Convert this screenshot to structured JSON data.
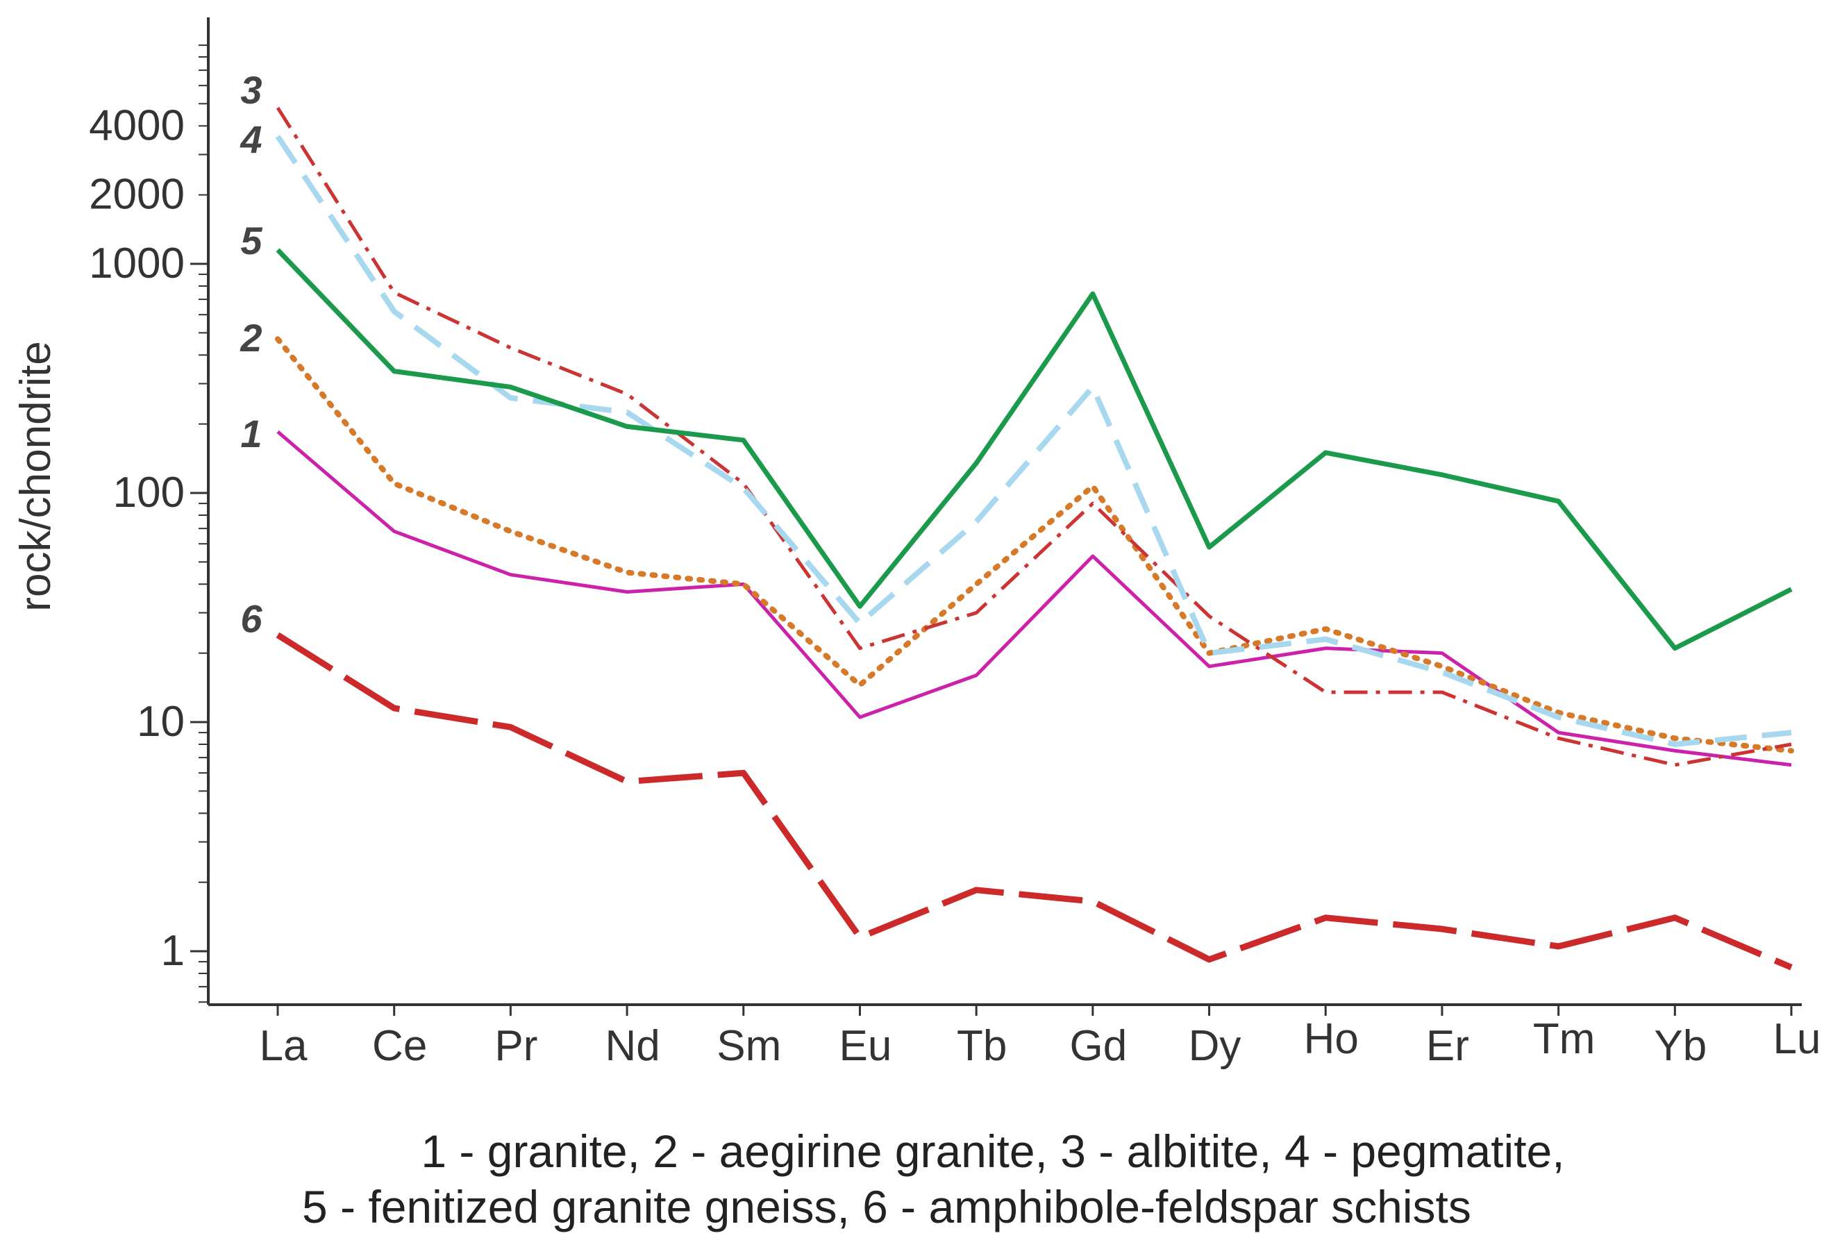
{
  "chart_data": {
    "type": "line",
    "title": "",
    "xlabel": "",
    "ylabel": "rock/chondrite",
    "yscale": "log",
    "ylim": [
      0.6,
      9000
    ],
    "y_ticks": [
      1,
      10,
      100,
      1000,
      2000,
      4000
    ],
    "y_tick_labels": [
      "1",
      "10",
      "100",
      "1000",
      "2000",
      "4000"
    ],
    "grid": false,
    "categories": [
      "La",
      "Ce",
      "Pr",
      "Nd",
      "Sm",
      "Eu",
      "Tb",
      "Gd",
      "Dy",
      "Ho",
      "Er",
      "Tm",
      "Yb",
      "Lu"
    ],
    "series": [
      {
        "name": "1",
        "label": "1",
        "color": "#cc22aa",
        "style": "solid",
        "values": [
          185,
          68,
          44,
          37,
          40,
          10.5,
          16,
          53,
          17.5,
          21,
          20,
          9,
          7.5,
          6.5
        ]
      },
      {
        "name": "2",
        "label": "2",
        "color": "#d67a2a",
        "style": "dotted",
        "values": [
          470,
          110,
          68,
          45,
          40,
          14.5,
          40,
          107,
          20,
          25.5,
          17.5,
          11,
          8.5,
          7.5
        ]
      },
      {
        "name": "3",
        "label": "3",
        "color": "#cc3333",
        "style": "dashdot",
        "values": [
          4800,
          750,
          430,
          270,
          110,
          21,
          30,
          90,
          29,
          13.5,
          13.5,
          8.5,
          6.5,
          8
        ]
      },
      {
        "name": "4",
        "label": "4",
        "color": "#a8d8f0",
        "style": "dashed",
        "values": [
          3600,
          620,
          260,
          225,
          105,
          27,
          75,
          290,
          20,
          23,
          16.5,
          10.5,
          8,
          9
        ]
      },
      {
        "name": "5",
        "label": "5",
        "color": "#1a9a4a",
        "style": "solid",
        "values": [
          1150,
          340,
          290,
          195,
          170,
          32,
          135,
          740,
          58,
          150,
          120,
          92,
          21,
          38
        ]
      },
      {
        "name": "6",
        "label": "6",
        "color": "#cc2a2a",
        "style": "longdash",
        "values": [
          24,
          11.5,
          9.5,
          5.5,
          6,
          1.15,
          1.85,
          1.65,
          0.92,
          1.4,
          1.25,
          1.05,
          1.4,
          0.85
        ]
      }
    ]
  },
  "caption": {
    "line1": "1 - granite, 2 - aegirine granite, 3 - albitite, 4 - pegmatite,",
    "line2": "5 - fenitized granite gneiss, 6 - amphibole-feldspar schists"
  }
}
